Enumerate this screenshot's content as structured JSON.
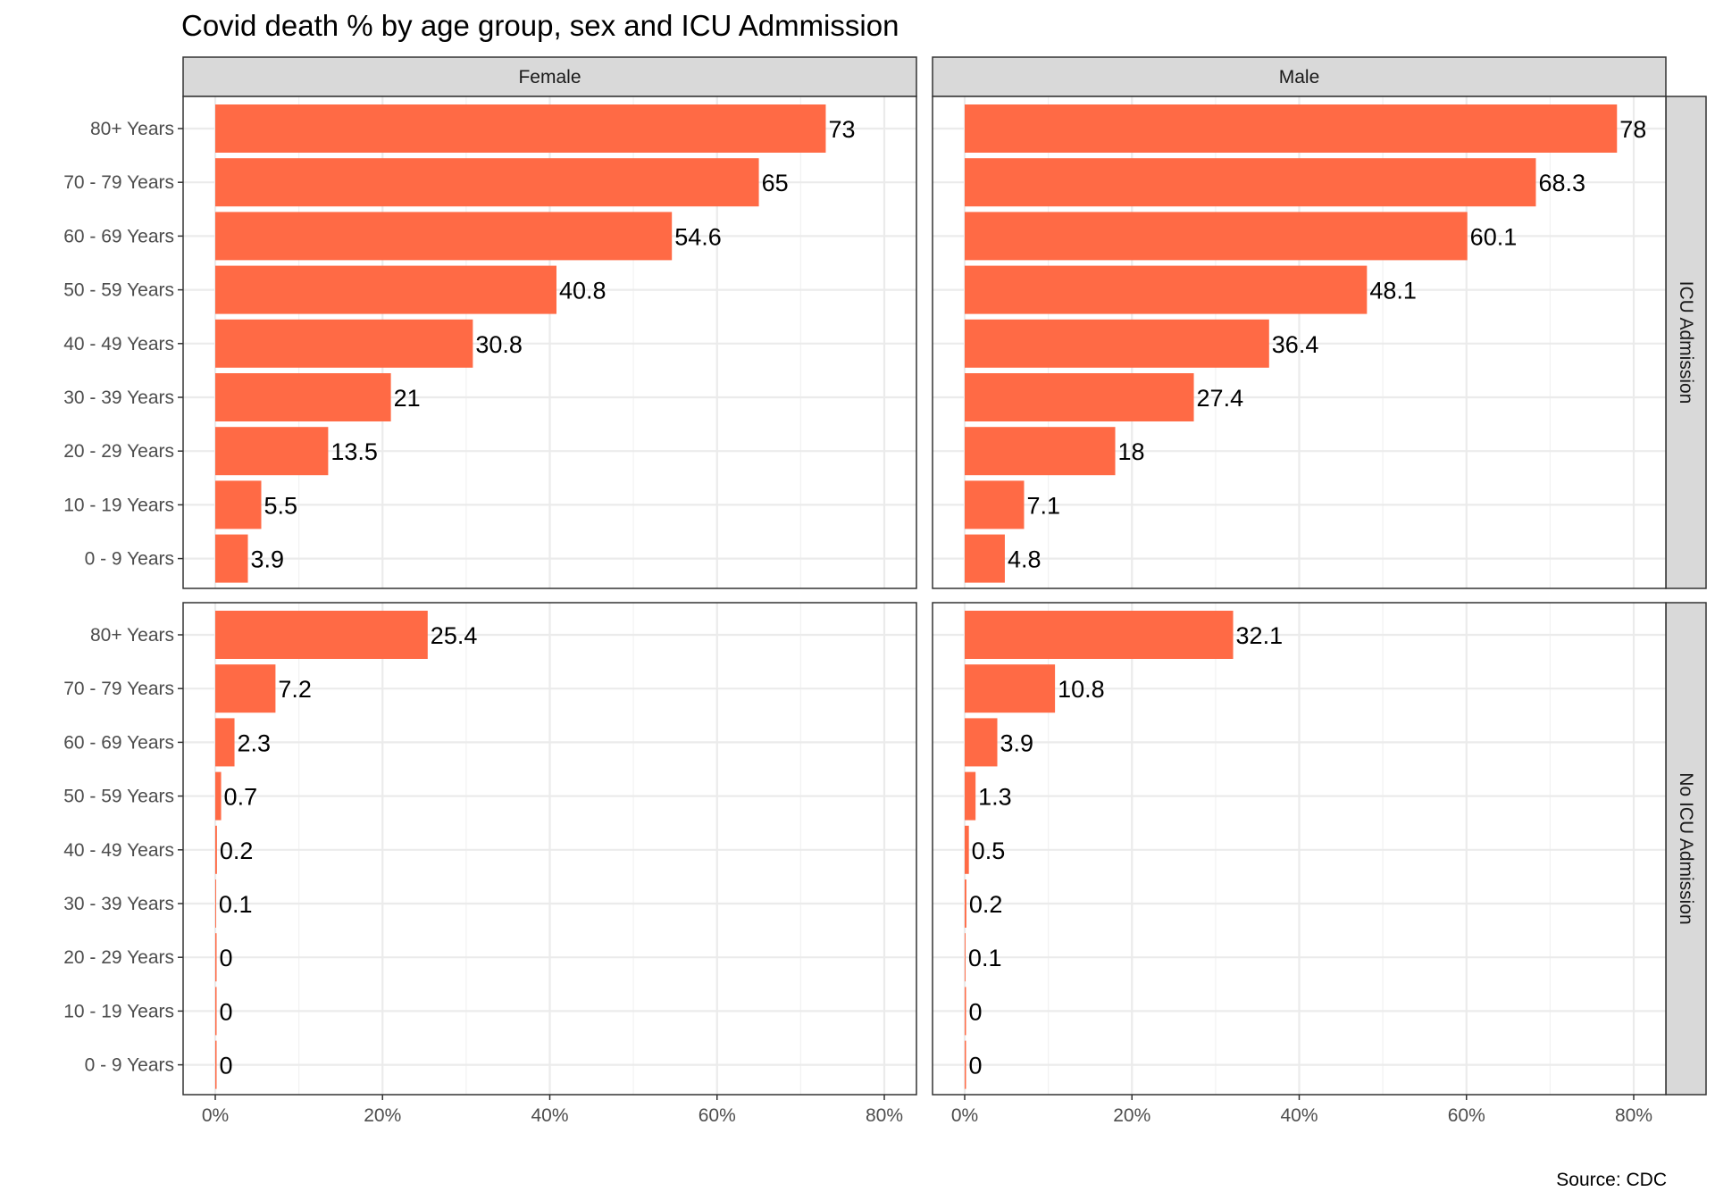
{
  "chart_data": {
    "type": "bar",
    "orientation": "horizontal",
    "title": "Covid death % by age group, sex and ICU Admmission",
    "caption": "Source: CDC",
    "facet_columns": [
      "Female",
      "Male"
    ],
    "facet_rows": [
      "ICU Admission",
      "No ICU Admission"
    ],
    "categories": [
      "80+ Years",
      "70 - 79 Years",
      "60 - 69 Years",
      "50 - 59 Years",
      "40 - 49 Years",
      "30 - 39 Years",
      "20 - 29 Years",
      "10 - 19 Years",
      "0 - 9 Years"
    ],
    "x_ticks": [
      "0%",
      "20%",
      "40%",
      "60%",
      "80%"
    ],
    "xlim": [
      0,
      80
    ],
    "grid": true,
    "legend": "none",
    "colors": {
      "bar": "#ff6a45",
      "strip_fill": "#d9d9d9",
      "grid": "#ebebeb"
    },
    "panels": [
      {
        "sex": "Female",
        "icu": "ICU Admission",
        "values": [
          73,
          65,
          54.6,
          40.8,
          30.8,
          21,
          13.5,
          5.5,
          3.9
        ]
      },
      {
        "sex": "Male",
        "icu": "ICU Admission",
        "values": [
          78,
          68.3,
          60.1,
          48.1,
          36.4,
          27.4,
          18,
          7.1,
          4.8
        ]
      },
      {
        "sex": "Female",
        "icu": "No ICU Admission",
        "values": [
          25.4,
          7.2,
          2.3,
          0.7,
          0.2,
          0.1,
          0,
          0,
          0
        ]
      },
      {
        "sex": "Male",
        "icu": "No ICU Admission",
        "values": [
          32.1,
          10.8,
          3.9,
          1.3,
          0.5,
          0.2,
          0.1,
          0,
          0
        ]
      }
    ]
  }
}
